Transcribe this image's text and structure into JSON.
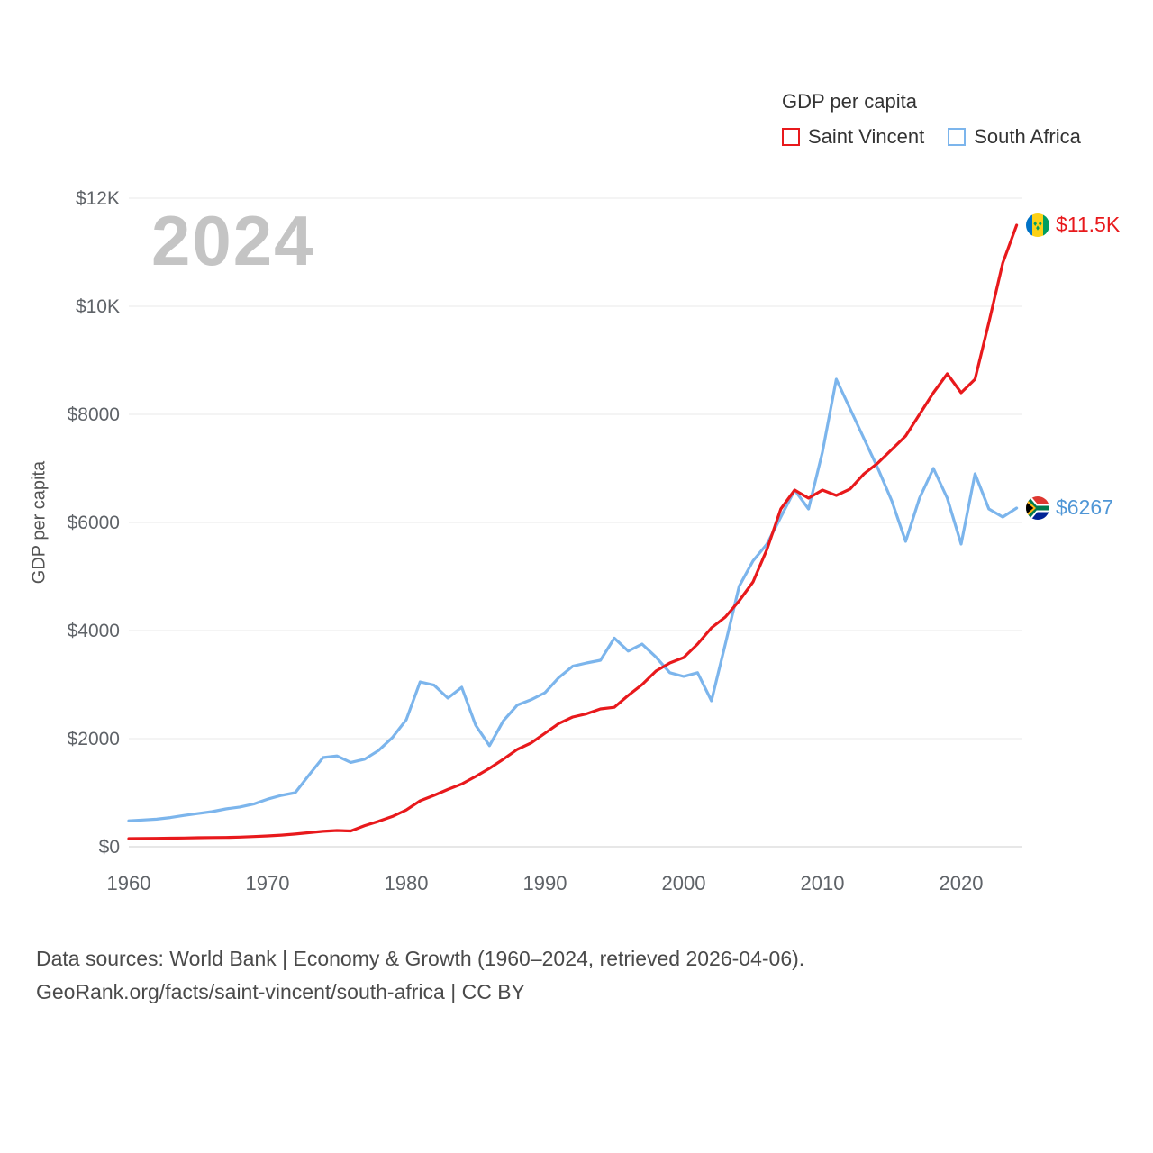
{
  "colors": {
    "saint_vincent": "#e8191c",
    "south_africa_line": "#7cb5ec",
    "south_africa_label": "#4f96d6",
    "watermark": "#c4c4c4",
    "gridline": "#e8e8e8",
    "axis_text": "#5f6368"
  },
  "legend": {
    "title": "GDP per capita",
    "items": [
      {
        "label": "Saint Vincent",
        "color": "#e8191c"
      },
      {
        "label": "South Africa",
        "color": "#7cb5ec"
      }
    ]
  },
  "watermark": "2024",
  "end_labels": [
    {
      "series": "Saint Vincent",
      "label": "$11.5K",
      "value": 11500,
      "flag": "saint-vincent-flag",
      "color": "#e8191c"
    },
    {
      "series": "South Africa",
      "label": "$6267",
      "value": 6267,
      "flag": "south-africa-flag",
      "color": "#4f96d6"
    }
  ],
  "footer": {
    "line1": "Data sources: World Bank | Economy & Growth (1960–2024, retrieved 2026-04-06).",
    "line2": "GeoRank.org/facts/saint-vincent/south-africa | CC BY"
  },
  "chart_data": {
    "type": "line",
    "title": "GDP per capita",
    "xlabel": "",
    "ylabel": "GDP per capita",
    "xlim": [
      1960,
      2024
    ],
    "ylim": [
      0,
      12000
    ],
    "grid": true,
    "legend_position": "top-right",
    "yticks": [
      {
        "value": 0,
        "label": "$0"
      },
      {
        "value": 2000,
        "label": "$2000"
      },
      {
        "value": 4000,
        "label": "$4000"
      },
      {
        "value": 6000,
        "label": "$6000"
      },
      {
        "value": 8000,
        "label": "$8000"
      },
      {
        "value": 10000,
        "label": "$10K"
      },
      {
        "value": 12000,
        "label": "$12K"
      }
    ],
    "xticks": [
      1960,
      1970,
      1980,
      1990,
      2000,
      2010,
      2020
    ],
    "x": [
      1960,
      1961,
      1962,
      1963,
      1964,
      1965,
      1966,
      1967,
      1968,
      1969,
      1970,
      1971,
      1972,
      1973,
      1974,
      1975,
      1976,
      1977,
      1978,
      1979,
      1980,
      1981,
      1982,
      1983,
      1984,
      1985,
      1986,
      1987,
      1988,
      1989,
      1990,
      1991,
      1992,
      1993,
      1994,
      1995,
      1996,
      1997,
      1998,
      1999,
      2000,
      2001,
      2002,
      2003,
      2004,
      2005,
      2006,
      2007,
      2008,
      2009,
      2010,
      2011,
      2012,
      2013,
      2014,
      2015,
      2016,
      2017,
      2018,
      2019,
      2020,
      2021,
      2022,
      2023,
      2024
    ],
    "series": [
      {
        "name": "Saint Vincent",
        "color": "#e8191c",
        "values": [
          150,
          152,
          155,
          158,
          162,
          166,
          170,
          172,
          178,
          188,
          200,
          215,
          235,
          260,
          285,
          300,
          292,
          390,
          470,
          560,
          680,
          850,
          950,
          1060,
          1160,
          1300,
          1450,
          1620,
          1800,
          1920,
          2100,
          2280,
          2400,
          2460,
          2550,
          2580,
          2800,
          3000,
          3250,
          3400,
          3500,
          3750,
          4050,
          4250,
          4550,
          4900,
          5500,
          6250,
          6600,
          6450,
          6600,
          6500,
          6620,
          6900,
          7100,
          7350,
          7600,
          8000,
          8400,
          8750,
          8400,
          8650,
          9700,
          10800,
          11500
        ]
      },
      {
        "name": "South Africa",
        "color": "#7cb5ec",
        "values": [
          480,
          495,
          510,
          540,
          580,
          615,
          650,
          700,
          735,
          790,
          880,
          950,
          1000,
          1330,
          1650,
          1680,
          1560,
          1620,
          1780,
          2020,
          2350,
          3050,
          2990,
          2750,
          2950,
          2250,
          1870,
          2330,
          2620,
          2720,
          2850,
          3130,
          3340,
          3400,
          3450,
          3860,
          3620,
          3750,
          3510,
          3220,
          3150,
          3220,
          2700,
          3750,
          4820,
          5290,
          5600,
          6100,
          6600,
          6250,
          7300,
          8650,
          8100,
          7550,
          7000,
          6400,
          5650,
          6450,
          7000,
          6450,
          5600,
          6900,
          6250,
          6100,
          6267
        ]
      }
    ]
  }
}
